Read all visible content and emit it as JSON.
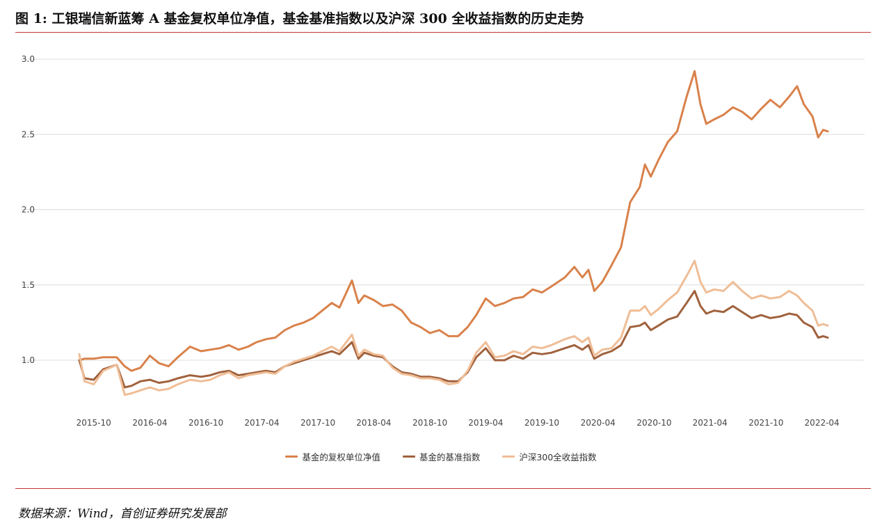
{
  "figure": {
    "title": "图 1: 工银瑞信新蓝筹 A 基金复权单位净值，基金基准指数以及沪深 300 全收益指数的历史走势",
    "source": "数据来源：Wind，首创证券研究发展部"
  },
  "chart_data": {
    "type": "line",
    "title": "",
    "xlabel": "",
    "ylabel": "",
    "x_ticks": [
      "2015-10",
      "2016-04",
      "2016-10",
      "2017-04",
      "2017-10",
      "2018-04",
      "2018-10",
      "2019-04",
      "2019-10",
      "2020-04",
      "2020-10",
      "2021-04",
      "2021-10",
      "2022-04"
    ],
    "y_ticks": [
      "1.0",
      "1.5",
      "2.0",
      "2.5",
      "3.0"
    ],
    "ylim": [
      0.75,
      3.0
    ],
    "x_range": [
      "2015-08-15",
      "2022-04-20"
    ],
    "grid": "horizontal",
    "legend_position": "bottom",
    "series": [
      {
        "name": "基金的复权单位净值",
        "color": "#d9814a",
        "points": [
          [
            "2015-08-15",
            1.0
          ],
          [
            "2015-09-01",
            1.01
          ],
          [
            "2015-10-01",
            1.01
          ],
          [
            "2015-11-01",
            1.02
          ],
          [
            "2015-12-15",
            1.02
          ],
          [
            "2016-01-10",
            0.96
          ],
          [
            "2016-02-01",
            0.93
          ],
          [
            "2016-03-01",
            0.95
          ],
          [
            "2016-04-01",
            1.03
          ],
          [
            "2016-05-01",
            0.98
          ],
          [
            "2016-06-01",
            0.96
          ],
          [
            "2016-07-01",
            1.02
          ],
          [
            "2016-08-10",
            1.09
          ],
          [
            "2016-09-15",
            1.06
          ],
          [
            "2016-10-15",
            1.07
          ],
          [
            "2016-11-15",
            1.08
          ],
          [
            "2016-12-15",
            1.1
          ],
          [
            "2017-01-15",
            1.07
          ],
          [
            "2017-02-15",
            1.09
          ],
          [
            "2017-03-15",
            1.12
          ],
          [
            "2017-04-15",
            1.14
          ],
          [
            "2017-05-15",
            1.15
          ],
          [
            "2017-06-15",
            1.2
          ],
          [
            "2017-07-15",
            1.23
          ],
          [
            "2017-08-15",
            1.25
          ],
          [
            "2017-09-15",
            1.28
          ],
          [
            "2017-10-15",
            1.33
          ],
          [
            "2017-11-15",
            1.38
          ],
          [
            "2017-12-10",
            1.35
          ],
          [
            "2018-01-20",
            1.53
          ],
          [
            "2018-02-10",
            1.38
          ],
          [
            "2018-03-01",
            1.43
          ],
          [
            "2018-04-01",
            1.4
          ],
          [
            "2018-05-01",
            1.36
          ],
          [
            "2018-06-01",
            1.37
          ],
          [
            "2018-07-01",
            1.33
          ],
          [
            "2018-08-01",
            1.25
          ],
          [
            "2018-09-01",
            1.22
          ],
          [
            "2018-10-01",
            1.18
          ],
          [
            "2018-11-01",
            1.2
          ],
          [
            "2018-12-01",
            1.16
          ],
          [
            "2019-01-01",
            1.16
          ],
          [
            "2019-02-01",
            1.22
          ],
          [
            "2019-03-01",
            1.3
          ],
          [
            "2019-04-01",
            1.41
          ],
          [
            "2019-05-01",
            1.36
          ],
          [
            "2019-06-01",
            1.38
          ],
          [
            "2019-07-01",
            1.41
          ],
          [
            "2019-08-01",
            1.42
          ],
          [
            "2019-09-01",
            1.47
          ],
          [
            "2019-10-01",
            1.45
          ],
          [
            "2019-11-01",
            1.49
          ],
          [
            "2019-12-15",
            1.55
          ],
          [
            "2020-01-15",
            1.62
          ],
          [
            "2020-02-10",
            1.55
          ],
          [
            "2020-03-01",
            1.6
          ],
          [
            "2020-03-20",
            1.46
          ],
          [
            "2020-04-15",
            1.52
          ],
          [
            "2020-05-15",
            1.63
          ],
          [
            "2020-06-15",
            1.75
          ],
          [
            "2020-07-15",
            2.05
          ],
          [
            "2020-08-15",
            2.15
          ],
          [
            "2020-09-01",
            2.3
          ],
          [
            "2020-09-20",
            2.22
          ],
          [
            "2020-10-15",
            2.33
          ],
          [
            "2020-11-15",
            2.45
          ],
          [
            "2020-12-15",
            2.52
          ],
          [
            "2021-01-15",
            2.75
          ],
          [
            "2021-02-10",
            2.92
          ],
          [
            "2021-03-01",
            2.7
          ],
          [
            "2021-03-20",
            2.57
          ],
          [
            "2021-04-15",
            2.6
          ],
          [
            "2021-05-15",
            2.63
          ],
          [
            "2021-06-15",
            2.68
          ],
          [
            "2021-07-15",
            2.65
          ],
          [
            "2021-08-15",
            2.6
          ],
          [
            "2021-09-15",
            2.67
          ],
          [
            "2021-10-15",
            2.73
          ],
          [
            "2021-11-15",
            2.68
          ],
          [
            "2021-12-15",
            2.75
          ],
          [
            "2022-01-10",
            2.82
          ],
          [
            "2022-02-01",
            2.7
          ],
          [
            "2022-03-01",
            2.62
          ],
          [
            "2022-03-20",
            2.48
          ],
          [
            "2022-04-05",
            2.53
          ],
          [
            "2022-04-20",
            2.52
          ]
        ]
      },
      {
        "name": "基金的基准指数",
        "color": "#a0613c",
        "points": [
          [
            "2015-08-15",
            1.0
          ],
          [
            "2015-09-01",
            0.88
          ],
          [
            "2015-10-01",
            0.87
          ],
          [
            "2015-11-01",
            0.94
          ],
          [
            "2015-12-15",
            0.97
          ],
          [
            "2016-01-10",
            0.82
          ],
          [
            "2016-02-01",
            0.83
          ],
          [
            "2016-03-01",
            0.86
          ],
          [
            "2016-04-01",
            0.87
          ],
          [
            "2016-05-01",
            0.85
          ],
          [
            "2016-06-01",
            0.86
          ],
          [
            "2016-07-01",
            0.88
          ],
          [
            "2016-08-10",
            0.9
          ],
          [
            "2016-09-15",
            0.89
          ],
          [
            "2016-10-15",
            0.9
          ],
          [
            "2016-11-15",
            0.92
          ],
          [
            "2016-12-15",
            0.93
          ],
          [
            "2017-01-15",
            0.9
          ],
          [
            "2017-02-15",
            0.91
          ],
          [
            "2017-03-15",
            0.92
          ],
          [
            "2017-04-15",
            0.93
          ],
          [
            "2017-05-15",
            0.92
          ],
          [
            "2017-06-15",
            0.96
          ],
          [
            "2017-07-15",
            0.98
          ],
          [
            "2017-08-15",
            1.0
          ],
          [
            "2017-09-15",
            1.02
          ],
          [
            "2017-10-15",
            1.04
          ],
          [
            "2017-11-15",
            1.06
          ],
          [
            "2017-12-10",
            1.04
          ],
          [
            "2018-01-20",
            1.12
          ],
          [
            "2018-02-10",
            1.01
          ],
          [
            "2018-03-01",
            1.05
          ],
          [
            "2018-04-01",
            1.03
          ],
          [
            "2018-05-01",
            1.02
          ],
          [
            "2018-06-01",
            0.96
          ],
          [
            "2018-07-01",
            0.92
          ],
          [
            "2018-08-01",
            0.91
          ],
          [
            "2018-09-01",
            0.89
          ],
          [
            "2018-10-01",
            0.89
          ],
          [
            "2018-11-01",
            0.88
          ],
          [
            "2018-12-01",
            0.86
          ],
          [
            "2019-01-01",
            0.86
          ],
          [
            "2019-02-01",
            0.92
          ],
          [
            "2019-03-01",
            1.02
          ],
          [
            "2019-04-01",
            1.08
          ],
          [
            "2019-05-01",
            1.0
          ],
          [
            "2019-06-01",
            1.0
          ],
          [
            "2019-07-01",
            1.03
          ],
          [
            "2019-08-01",
            1.01
          ],
          [
            "2019-09-01",
            1.05
          ],
          [
            "2019-10-01",
            1.04
          ],
          [
            "2019-11-01",
            1.05
          ],
          [
            "2019-12-15",
            1.08
          ],
          [
            "2020-01-15",
            1.1
          ],
          [
            "2020-02-10",
            1.07
          ],
          [
            "2020-03-01",
            1.1
          ],
          [
            "2020-03-20",
            1.01
          ],
          [
            "2020-04-15",
            1.04
          ],
          [
            "2020-05-15",
            1.06
          ],
          [
            "2020-06-15",
            1.1
          ],
          [
            "2020-07-15",
            1.22
          ],
          [
            "2020-08-15",
            1.23
          ],
          [
            "2020-09-01",
            1.25
          ],
          [
            "2020-09-20",
            1.2
          ],
          [
            "2020-10-15",
            1.23
          ],
          [
            "2020-11-15",
            1.27
          ],
          [
            "2020-12-15",
            1.29
          ],
          [
            "2021-01-15",
            1.38
          ],
          [
            "2021-02-10",
            1.46
          ],
          [
            "2021-03-01",
            1.36
          ],
          [
            "2021-03-20",
            1.31
          ],
          [
            "2021-04-15",
            1.33
          ],
          [
            "2021-05-15",
            1.32
          ],
          [
            "2021-06-15",
            1.36
          ],
          [
            "2021-07-15",
            1.32
          ],
          [
            "2021-08-15",
            1.28
          ],
          [
            "2021-09-15",
            1.3
          ],
          [
            "2021-10-15",
            1.28
          ],
          [
            "2021-11-15",
            1.29
          ],
          [
            "2021-12-15",
            1.31
          ],
          [
            "2022-01-10",
            1.3
          ],
          [
            "2022-02-01",
            1.25
          ],
          [
            "2022-03-01",
            1.22
          ],
          [
            "2022-03-20",
            1.15
          ],
          [
            "2022-04-05",
            1.16
          ],
          [
            "2022-04-20",
            1.15
          ]
        ]
      },
      {
        "name": "沪深300全收益指数",
        "color": "#efbd96",
        "points": [
          [
            "2015-08-15",
            1.04
          ],
          [
            "2015-09-01",
            0.86
          ],
          [
            "2015-10-01",
            0.84
          ],
          [
            "2015-11-01",
            0.93
          ],
          [
            "2015-12-15",
            0.97
          ],
          [
            "2016-01-10",
            0.77
          ],
          [
            "2016-02-01",
            0.78
          ],
          [
            "2016-03-01",
            0.8
          ],
          [
            "2016-04-01",
            0.82
          ],
          [
            "2016-05-01",
            0.8
          ],
          [
            "2016-06-01",
            0.81
          ],
          [
            "2016-07-01",
            0.84
          ],
          [
            "2016-08-10",
            0.87
          ],
          [
            "2016-09-15",
            0.86
          ],
          [
            "2016-10-15",
            0.87
          ],
          [
            "2016-11-15",
            0.9
          ],
          [
            "2016-12-15",
            0.92
          ],
          [
            "2017-01-15",
            0.88
          ],
          [
            "2017-02-15",
            0.9
          ],
          [
            "2017-03-15",
            0.91
          ],
          [
            "2017-04-15",
            0.92
          ],
          [
            "2017-05-15",
            0.91
          ],
          [
            "2017-06-15",
            0.96
          ],
          [
            "2017-07-15",
            0.99
          ],
          [
            "2017-08-15",
            1.01
          ],
          [
            "2017-09-15",
            1.03
          ],
          [
            "2017-10-15",
            1.06
          ],
          [
            "2017-11-15",
            1.09
          ],
          [
            "2017-12-10",
            1.06
          ],
          [
            "2018-01-20",
            1.17
          ],
          [
            "2018-02-10",
            1.03
          ],
          [
            "2018-03-01",
            1.07
          ],
          [
            "2018-04-01",
            1.04
          ],
          [
            "2018-05-01",
            1.03
          ],
          [
            "2018-06-01",
            0.95
          ],
          [
            "2018-07-01",
            0.91
          ],
          [
            "2018-08-01",
            0.9
          ],
          [
            "2018-09-01",
            0.88
          ],
          [
            "2018-10-01",
            0.88
          ],
          [
            "2018-11-01",
            0.87
          ],
          [
            "2018-12-01",
            0.84
          ],
          [
            "2019-01-01",
            0.85
          ],
          [
            "2019-02-01",
            0.93
          ],
          [
            "2019-03-01",
            1.05
          ],
          [
            "2019-04-01",
            1.12
          ],
          [
            "2019-05-01",
            1.02
          ],
          [
            "2019-06-01",
            1.03
          ],
          [
            "2019-07-01",
            1.06
          ],
          [
            "2019-08-01",
            1.04
          ],
          [
            "2019-09-01",
            1.09
          ],
          [
            "2019-10-01",
            1.08
          ],
          [
            "2019-11-01",
            1.1
          ],
          [
            "2019-12-15",
            1.14
          ],
          [
            "2020-01-15",
            1.16
          ],
          [
            "2020-02-10",
            1.12
          ],
          [
            "2020-03-01",
            1.15
          ],
          [
            "2020-03-20",
            1.03
          ],
          [
            "2020-04-15",
            1.07
          ],
          [
            "2020-05-15",
            1.08
          ],
          [
            "2020-06-15",
            1.15
          ],
          [
            "2020-07-15",
            1.33
          ],
          [
            "2020-08-15",
            1.33
          ],
          [
            "2020-09-01",
            1.36
          ],
          [
            "2020-09-20",
            1.3
          ],
          [
            "2020-10-15",
            1.34
          ],
          [
            "2020-11-15",
            1.4
          ],
          [
            "2020-12-15",
            1.45
          ],
          [
            "2021-01-15",
            1.56
          ],
          [
            "2021-02-10",
            1.66
          ],
          [
            "2021-03-01",
            1.52
          ],
          [
            "2021-03-20",
            1.45
          ],
          [
            "2021-04-15",
            1.47
          ],
          [
            "2021-05-15",
            1.46
          ],
          [
            "2021-06-15",
            1.52
          ],
          [
            "2021-07-15",
            1.46
          ],
          [
            "2021-08-15",
            1.41
          ],
          [
            "2021-09-15",
            1.43
          ],
          [
            "2021-10-15",
            1.41
          ],
          [
            "2021-11-15",
            1.42
          ],
          [
            "2021-12-15",
            1.46
          ],
          [
            "2022-01-10",
            1.43
          ],
          [
            "2022-02-01",
            1.38
          ],
          [
            "2022-03-01",
            1.33
          ],
          [
            "2022-03-20",
            1.23
          ],
          [
            "2022-04-05",
            1.24
          ],
          [
            "2022-04-20",
            1.23
          ]
        ]
      }
    ]
  }
}
